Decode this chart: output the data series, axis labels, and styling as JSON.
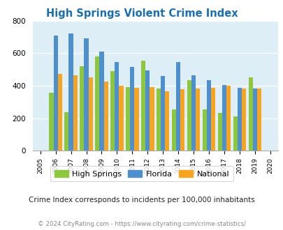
{
  "title": "High Springs Violent Crime Index",
  "all_years": [
    2005,
    2006,
    2007,
    2008,
    2009,
    2010,
    2011,
    2012,
    2013,
    2014,
    2015,
    2016,
    2017,
    2018,
    2019,
    2020
  ],
  "bar_years": [
    2006,
    2007,
    2008,
    2009,
    2010,
    2011,
    2012,
    2013,
    2014,
    2015,
    2016,
    2017,
    2018,
    2019
  ],
  "high_springs": [
    355,
    238,
    520,
    580,
    488,
    390,
    555,
    383,
    252,
    433,
    253,
    233,
    210,
    450
  ],
  "florida": [
    710,
    720,
    690,
    610,
    545,
    515,
    495,
    458,
    547,
    462,
    433,
    405,
    387,
    383
  ],
  "national": [
    473,
    465,
    452,
    427,
    400,
    388,
    390,
    365,
    377,
    383,
    386,
    398,
    384,
    383
  ],
  "high_springs_color": "#8dc63f",
  "florida_color": "#4d90cd",
  "national_color": "#f7a520",
  "bg_color": "#ddeef6",
  "ylim": [
    0,
    800
  ],
  "yticks": [
    0,
    200,
    400,
    600,
    800
  ],
  "subtitle": "Crime Index corresponds to incidents per 100,000 inhabitants",
  "footer": "© 2024 CityRating.com - https://www.cityrating.com/crime-statistics/",
  "legend_labels": [
    "High Springs",
    "Florida",
    "National"
  ],
  "title_color": "#1a6faf",
  "subtitle_color": "#222222",
  "footer_color": "#888888"
}
